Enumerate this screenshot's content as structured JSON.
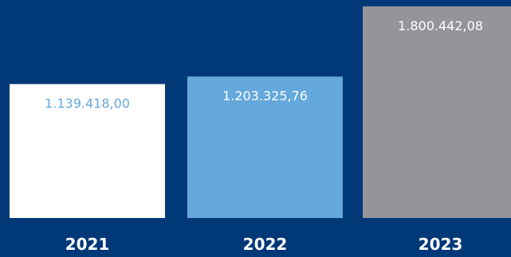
{
  "chart_data": {
    "type": "bar",
    "categories": [
      "2021",
      "2022",
      "2023"
    ],
    "values": [
      1139418.0,
      1203325.76,
      1800442.08
    ],
    "value_labels": [
      "1.139.418,00",
      "1.203.325,76",
      "1.800.442,08"
    ],
    "title": "",
    "xlabel": "",
    "ylabel": "",
    "ylim": [
      0,
      1800442.08
    ],
    "grid": false,
    "legend": "none"
  },
  "colors": {
    "background": "#003878",
    "bars": [
      "#ffffff",
      "#64a8dc",
      "#939598"
    ],
    "value_label_colors": [
      "#64a8dc",
      "#ffffff",
      "#ffffff"
    ],
    "category_label": "#ffffff"
  }
}
